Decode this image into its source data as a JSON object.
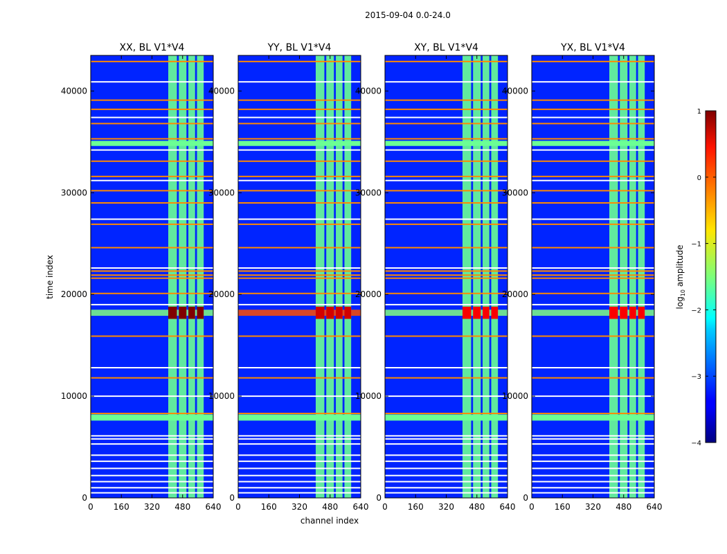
{
  "chart_data": {
    "type": "heatmap",
    "title": "2015-09-04 0.0-24.0",
    "xlabel": "channel index",
    "ylabel": "time index",
    "xlim": [
      0,
      640
    ],
    "ylim": [
      0,
      43500
    ],
    "xticks": [
      0,
      160,
      320,
      480,
      640
    ],
    "yticks": [
      0,
      10000,
      20000,
      30000,
      40000
    ],
    "panels": [
      {
        "title": "XX, BL V1*V4",
        "peak_log_amplitude": 1.0
      },
      {
        "title": "YY, BL V1*V4",
        "peak_log_amplitude": 0.6
      },
      {
        "title": "XY, BL V1*V4",
        "peak_log_amplitude": 0.4
      },
      {
        "title": "YX, BL V1*V4",
        "peak_log_amplitude": 0.4
      }
    ],
    "structure": {
      "background_log_amplitude": -3.2,
      "active_channel_range": [
        400,
        590
      ],
      "active_channel_columns": [
        [
          405,
          450
        ],
        [
          460,
          500
        ],
        [
          510,
          545
        ],
        [
          555,
          590
        ]
      ],
      "active_log_amplitude": -1.6,
      "strong_time_range": [
        17600,
        18800
      ],
      "strong_log_amplitude": 0.5,
      "green_bands": [
        [
          7600,
          8200
        ],
        [
          34600,
          35100
        ]
      ],
      "orange_lines": [
        8300,
        11800,
        15900,
        20100,
        21600,
        21900,
        22300,
        24600,
        26900,
        29000,
        30200,
        31600,
        33100,
        35300,
        36800,
        38200,
        39100,
        42900
      ],
      "white_gaps": [
        500,
        1000,
        1600,
        2200,
        2900,
        3600,
        4200,
        5300,
        5800,
        6100,
        10000,
        12800,
        19000,
        22600,
        27400,
        31200,
        34200,
        37400,
        40900
      ]
    },
    "colorbar": {
      "label_prefix": "log",
      "label_sub": "10",
      "label_suffix": " amplitude",
      "min": -4,
      "max": 1,
      "ticks": [
        "1",
        "0",
        "−1",
        "−2",
        "−3",
        "−4"
      ],
      "tick_values": [
        1,
        0,
        -1,
        -2,
        -3,
        -4
      ]
    }
  }
}
